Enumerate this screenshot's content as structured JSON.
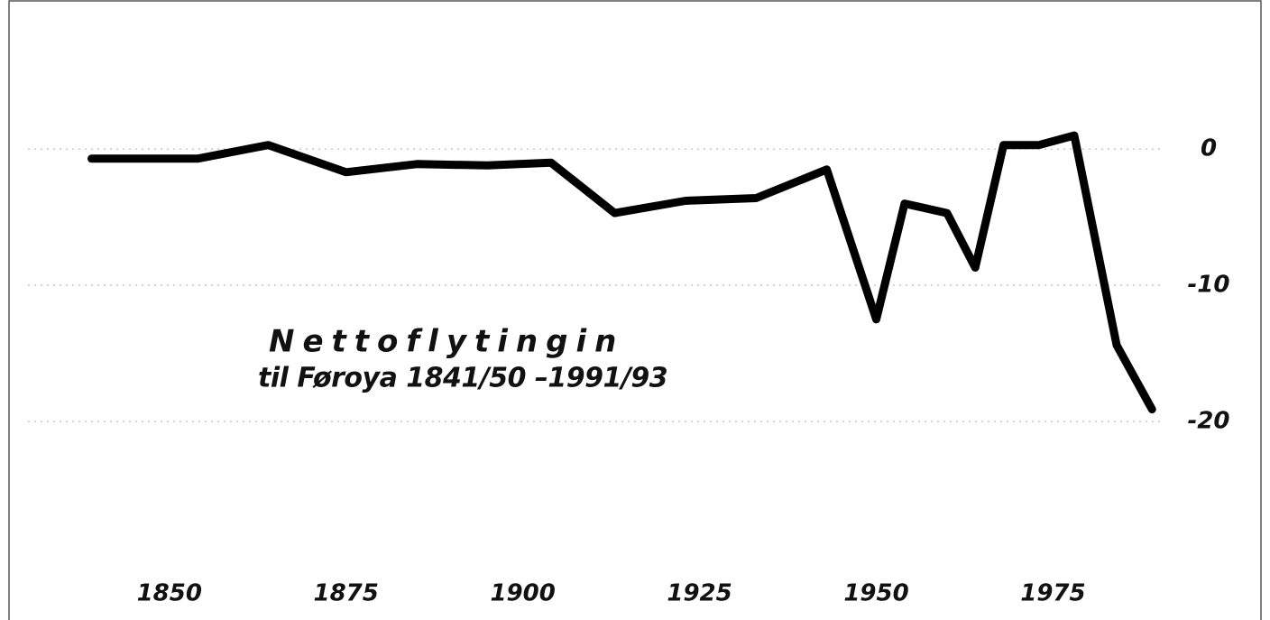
{
  "chart_data": {
    "type": "line",
    "title": "Nettoflytingin",
    "subtitle": "til Føroya 1841/50 –1991/93",
    "x": [
      1839,
      1854,
      1864,
      1875,
      1885,
      1895,
      1904,
      1913,
      1923,
      1933,
      1943,
      1950,
      1954,
      1960,
      1964,
      1968,
      1973,
      1978,
      1984,
      1989
    ],
    "values": [
      -0.7,
      -0.7,
      0.3,
      -1.7,
      -1.1,
      -1.2,
      -1.0,
      -4.7,
      -3.8,
      -3.6,
      -1.5,
      -12.5,
      -4.0,
      -4.7,
      -8.7,
      0.3,
      0.3,
      1.0,
      -14.4,
      -19.1
    ],
    "color": "#000000",
    "xlim": [
      1830,
      1990
    ],
    "xticks": [
      1850,
      1875,
      1900,
      1925,
      1950,
      1975
    ],
    "ylim": [
      -25,
      2
    ],
    "yticks": [
      0,
      -10,
      -20
    ],
    "grid": true
  }
}
